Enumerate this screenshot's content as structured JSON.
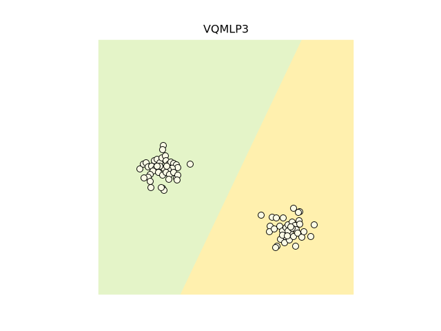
{
  "chart_data": {
    "type": "scatter",
    "title": "VQMLP3",
    "xlim": [
      0,
      370
    ],
    "ylim": [
      0,
      369
    ],
    "regions": [
      {
        "color": "#e4f4c8",
        "x": [
          0,
          119,
          295,
          0
        ],
        "y": [
          0,
          0,
          369,
          369
        ]
      },
      {
        "color": "#fff0ae",
        "x": [
          119,
          370,
          370,
          295
        ],
        "y": [
          0,
          0,
          369,
          369
        ]
      }
    ],
    "color": "#fbfbe6",
    "x": [
      94,
      93,
      133,
      60,
      65,
      69,
      72,
      77,
      81,
      85,
      89,
      92,
      97,
      98,
      102,
      105,
      109,
      113,
      115,
      107,
      101,
      95,
      89,
      83,
      79,
      75,
      72,
      66,
      75,
      76,
      87,
      93,
      98,
      103,
      109,
      113,
      115,
      114,
      102,
      93,
      95,
      91,
      85,
      99,
      236,
      252,
      258,
      268,
      283,
      292,
      290,
      313,
      249,
      248,
      255,
      263,
      267,
      272,
      275,
      281,
      285,
      291,
      292,
      287,
      278,
      271,
      264,
      270,
      277,
      283,
      289,
      295,
      298,
      308,
      286,
      259,
      257,
      275,
      281,
      267,
      274,
      279
    ],
    "y": [
      216,
      210,
      189,
      182,
      189,
      191,
      185,
      186,
      194,
      196,
      191,
      198,
      201,
      194,
      189,
      192,
      190,
      188,
      184,
      183,
      181,
      183,
      186,
      183,
      179,
      174,
      170,
      169,
      164,
      155,
      177,
      173,
      177,
      174,
      177,
      169,
      173,
      166,
      167,
      154,
      151,
      155,
      186,
      186,
      115,
      112,
      111,
      111,
      125,
      120,
      119,
      101,
      99,
      91,
      95,
      99,
      92,
      97,
      101,
      105,
      100,
      107,
      102,
      94,
      90,
      84,
      80,
      75,
      79,
      84,
      89,
      83,
      91,
      84,
      70,
      70,
      68,
      92,
      96,
      86,
      85,
      98
    ]
  }
}
